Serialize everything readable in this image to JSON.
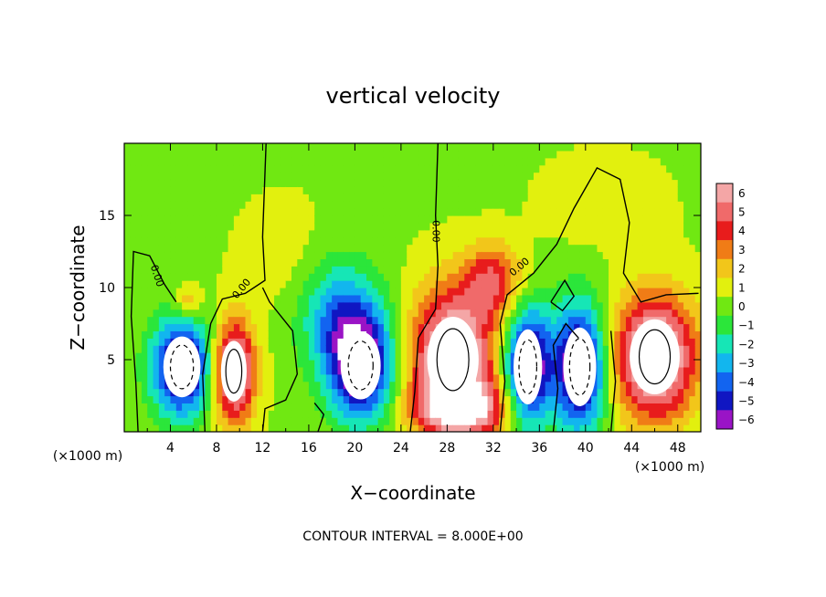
{
  "chart_data": {
    "type": "heatmap",
    "title": "vertical velocity",
    "xlabel": "X−coordinate",
    "ylabel": "Z−coordinate",
    "x_unit": "(×1000 m)",
    "x_unit_right": "(×1000 m)",
    "footer": "CONTOUR INTERVAL = 8.000E+00",
    "xlim": [
      0,
      50
    ],
    "ylim": [
      0,
      20
    ],
    "x_ticks": [
      "4",
      "8",
      "12",
      "16",
      "20",
      "24",
      "28",
      "32",
      "36",
      "40",
      "44",
      "48"
    ],
    "x_tick_values": [
      4,
      8,
      12,
      16,
      20,
      24,
      28,
      32,
      36,
      40,
      44,
      48
    ],
    "y_ticks": [
      "5",
      "10",
      "15"
    ],
    "y_tick_values": [
      5,
      10,
      15
    ],
    "contour_labels": [
      "0.00",
      "0.00",
      "0.00",
      "0.00"
    ],
    "colorbar": {
      "levels": [
        "6",
        "5",
        "4",
        "3",
        "2",
        "1",
        "0",
        "−1",
        "−2",
        "−3",
        "−4",
        "−5",
        "−6"
      ],
      "colors": [
        "#f4a6a6",
        "#f06a6a",
        "#e81c1c",
        "#f07c16",
        "#f2c61a",
        "#e2f00e",
        "#70e812",
        "#2be63a",
        "#16e6b6",
        "#12b6ee",
        "#1264f0",
        "#1016c2",
        "#9a14c6"
      ]
    },
    "features": [
      {
        "x": 5.0,
        "z": 4.5,
        "w": -7.5,
        "rx": 2.6,
        "rz": 3.4
      },
      {
        "x": 9.5,
        "z": 4.2,
        "w": 7.5,
        "rx": 1.8,
        "rz": 3.4
      },
      {
        "x": 20.5,
        "z": 4.6,
        "w": -7.5,
        "rx": 2.8,
        "rz": 3.8
      },
      {
        "x": 18.5,
        "z": 8.2,
        "w": -3.5,
        "rx": 3.5,
        "rz": 4.0
      },
      {
        "x": 28.5,
        "z": 5.0,
        "w": 8.0,
        "rx": 3.6,
        "rz": 4.8
      },
      {
        "x": 29.5,
        "z": 1.6,
        "w": 5.0,
        "rx": 4.0,
        "rz": 1.8
      },
      {
        "x": 35.0,
        "z": 4.5,
        "w": -7.5,
        "rx": 2.0,
        "rz": 4.2
      },
      {
        "x": 39.5,
        "z": 4.5,
        "w": -7.5,
        "rx": 2.3,
        "rz": 4.4
      },
      {
        "x": 46.0,
        "z": 5.2,
        "w": 8.0,
        "rx": 3.5,
        "rz": 4.2
      },
      {
        "x": 5.5,
        "z": 9.0,
        "w": 2.5,
        "rx": 1.2,
        "rz": 1.2
      },
      {
        "x": 32.0,
        "z": 10.5,
        "w": 4.0,
        "rx": 2.5,
        "rz": 2.5
      },
      {
        "x": 14.0,
        "z": 12.0,
        "w": 0.8,
        "rx": 4.0,
        "rz": 4.0
      },
      {
        "x": 41.5,
        "z": 16.0,
        "w": 0.9,
        "rx": 5.0,
        "rz": 3.0
      }
    ]
  }
}
